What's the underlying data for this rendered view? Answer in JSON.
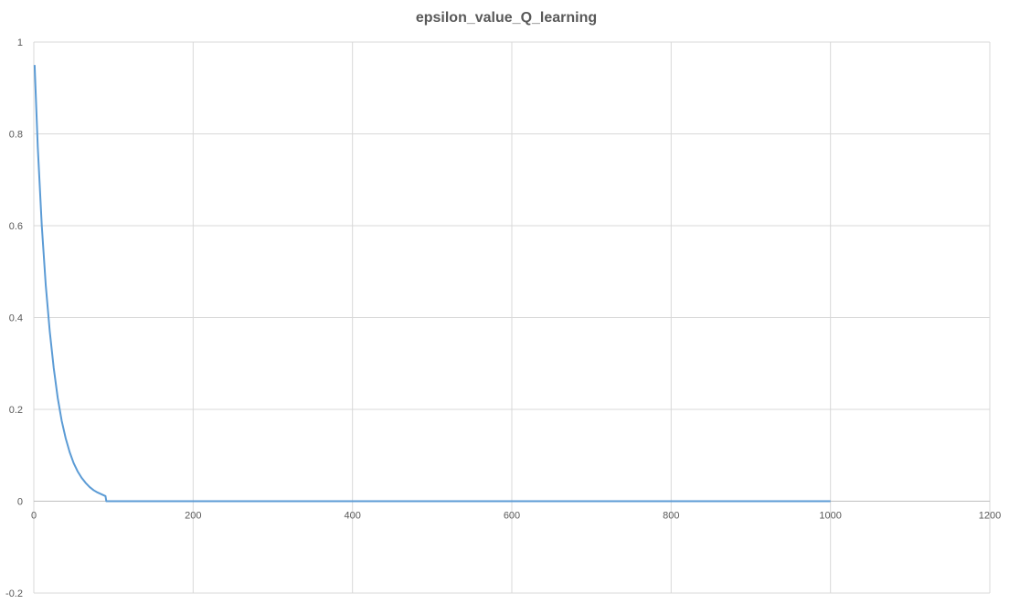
{
  "chart_data": {
    "type": "line",
    "title": "epsilon_value_Q_learning",
    "xlabel": "",
    "ylabel": "",
    "xlim": [
      0,
      1200
    ],
    "ylim": [
      -0.2,
      1
    ],
    "x_ticks": [
      0,
      200,
      400,
      600,
      800,
      1000,
      1200
    ],
    "y_ticks": [
      -0.2,
      0,
      0.2,
      0.4,
      0.6,
      0.8,
      1
    ],
    "y_tick_labels": [
      "-0.2",
      "0",
      "0.2",
      "0.4",
      "0.6",
      "0.8",
      "1"
    ],
    "grid": true,
    "legend": "none",
    "series": [
      {
        "color": "#5b9bd5",
        "x": [
          1,
          5,
          10,
          15,
          20,
          25,
          30,
          35,
          40,
          45,
          50,
          55,
          60,
          65,
          70,
          75,
          80,
          85,
          90,
          91,
          100,
          200,
          300,
          400,
          500,
          600,
          700,
          800,
          900,
          1000
        ],
        "values": [
          0.95,
          0.77,
          0.6,
          0.47,
          0.37,
          0.29,
          0.225,
          0.175,
          0.137,
          0.107,
          0.083,
          0.065,
          0.051,
          0.04,
          0.031,
          0.024,
          0.019,
          0.015,
          0.011,
          0,
          0,
          0,
          0,
          0,
          0,
          0,
          0,
          0,
          0,
          0
        ]
      }
    ]
  }
}
